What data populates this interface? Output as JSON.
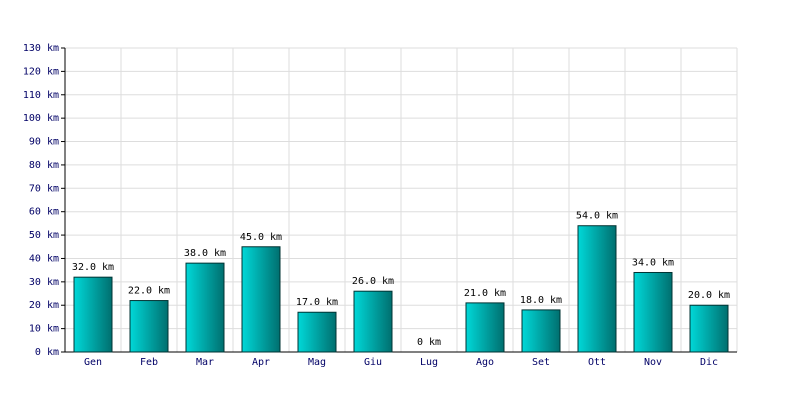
{
  "chart_data": {
    "type": "bar",
    "categories": [
      "Gen",
      "Feb",
      "Mar",
      "Apr",
      "Mag",
      "Giu",
      "Lug",
      "Ago",
      "Set",
      "Ott",
      "Nov",
      "Dic"
    ],
    "values": [
      32,
      22,
      38,
      45,
      17,
      26,
      0,
      21,
      18,
      54,
      34,
      20
    ],
    "value_labels": [
      "32.0 km",
      "22.0 km",
      "38.0 km",
      "45.0 km",
      "17.0 km",
      "26.0 km",
      "0 km",
      "21.0 km",
      "18.0 km",
      "54.0 km",
      "34.0 km",
      "20.0 km"
    ],
    "color": "#00d8d8",
    "ylim": [
      0,
      130
    ],
    "yticks": [
      {
        "value": 0,
        "label": "0 km"
      },
      {
        "value": 10,
        "label": "10 km"
      },
      {
        "value": 20,
        "label": "20 km"
      },
      {
        "value": 30,
        "label": "30 km"
      },
      {
        "value": 40,
        "label": "40 km"
      },
      {
        "value": 50,
        "label": "50 km"
      },
      {
        "value": 60,
        "label": "60 km"
      },
      {
        "value": 70,
        "label": "70 km"
      },
      {
        "value": 80,
        "label": "80 km"
      },
      {
        "value": 90,
        "label": "90 km"
      },
      {
        "value": 100,
        "label": "100 km"
      },
      {
        "value": 110,
        "label": "110 km"
      },
      {
        "value": 120,
        "label": "120 km"
      },
      {
        "value": 130,
        "label": "130 km"
      }
    ],
    "grid": true
  }
}
